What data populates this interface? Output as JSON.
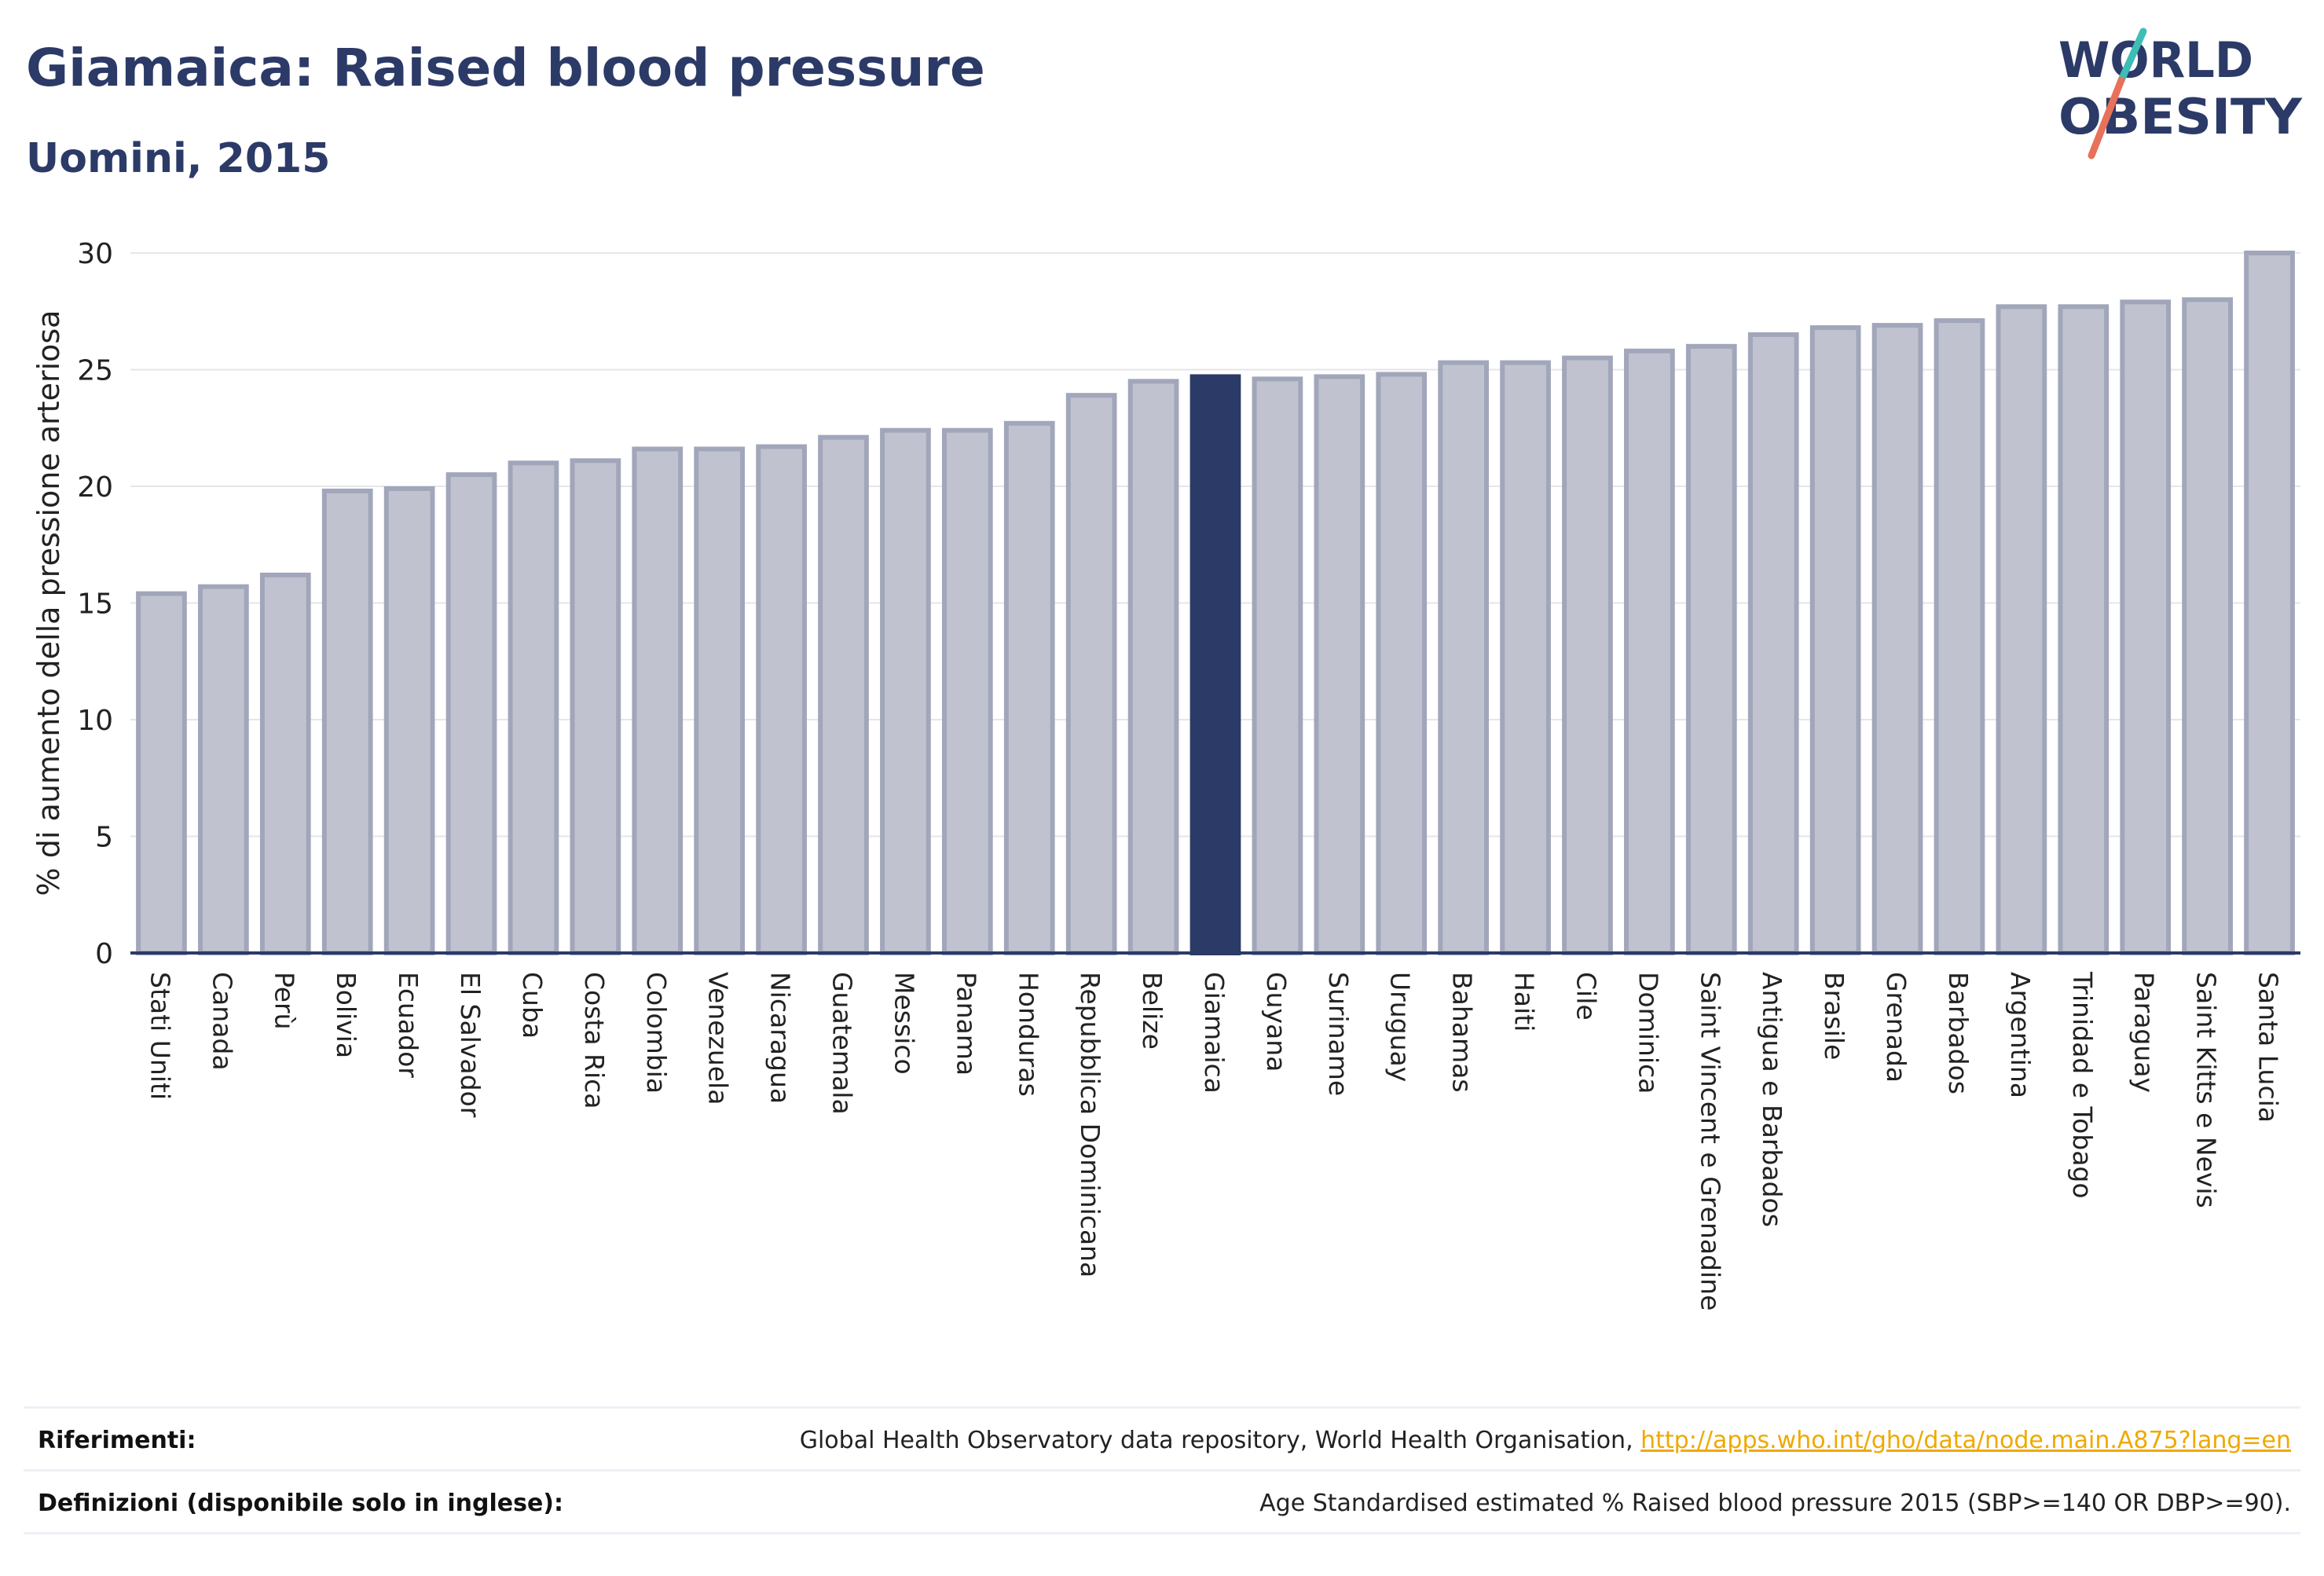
{
  "header": {
    "title": "Giamaica: Raised blood pressure",
    "subtitle": "Uomini, 2015"
  },
  "logo": {
    "line1": "WORLD",
    "line2": "OBESITY",
    "colors": {
      "text": "#2b3a67",
      "slash_teal": "#3dbdb5",
      "slash_coral": "#e8715a"
    }
  },
  "chart_data": {
    "type": "bar",
    "ylabel": "% di aumento della pressione arteriosa",
    "ylim": [
      0,
      30
    ],
    "yticks": [
      0,
      5,
      10,
      15,
      20,
      25,
      30
    ],
    "grid": true,
    "highlight": "Giamaica",
    "colors": {
      "bar": "#c0c3cf",
      "bar_border": "#a1a6ba",
      "highlight": "#2b3a67",
      "axis": "#2b3a67",
      "grid": "#e6e6ea"
    },
    "categories": [
      "Stati Uniti",
      "Canada",
      "Perù",
      "Bolivia",
      "Ecuador",
      "El Salvador",
      "Cuba",
      "Costa Rica",
      "Colombia",
      "Venezuela",
      "Nicaragua",
      "Guatemala",
      "Messico",
      "Panama",
      "Honduras",
      "Repubblica Dominicana",
      "Belize",
      "Giamaica",
      "Guyana",
      "Suriname",
      "Uruguay",
      "Bahamas",
      "Haiti",
      "Cile",
      "Dominica",
      "Saint Vincent e Grenadine",
      "Antigua e Barbados",
      "Brasile",
      "Grenada",
      "Barbados",
      "Argentina",
      "Trinidad e Tobago",
      "Paraguay",
      "Saint Kitts e Nevis",
      "Santa Lucia"
    ],
    "values": [
      15.4,
      15.7,
      16.2,
      19.8,
      19.9,
      20.5,
      21.0,
      21.1,
      21.6,
      21.6,
      21.7,
      22.1,
      22.4,
      22.4,
      22.7,
      23.9,
      24.5,
      24.7,
      24.6,
      24.7,
      24.8,
      25.3,
      25.3,
      25.5,
      25.8,
      26.0,
      26.5,
      26.8,
      26.9,
      27.1,
      27.7,
      27.7,
      27.9,
      28.0,
      30.0
    ]
  },
  "footer": {
    "references_label": "Riferimenti:",
    "references_text": "Global Health Observatory data repository, World Health Organisation, ",
    "references_link": "http://apps.who.int/gho/data/node.main.A875?lang=en",
    "definitions_label": "Definizioni (disponibile solo in inglese):",
    "definitions_text": "Age Standardised estimated % Raised blood pressure 2015 (SBP>=140 OR DBP>=90)."
  }
}
